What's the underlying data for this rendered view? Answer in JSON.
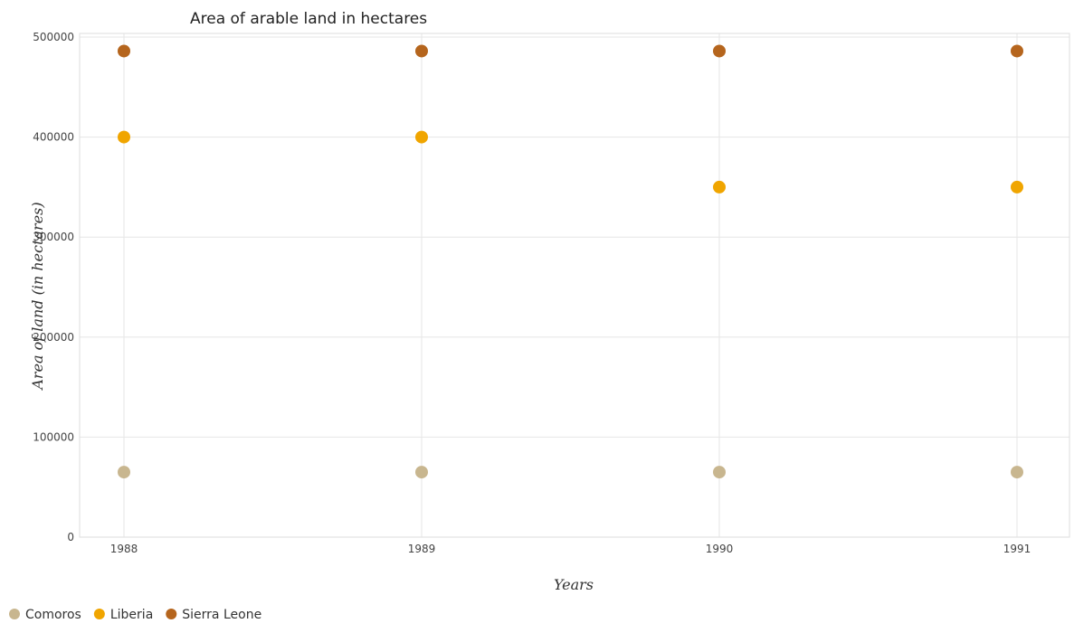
{
  "chart_data": {
    "type": "scatter",
    "title": "Area of arable land in hectares",
    "xlabel": "Years",
    "ylabel": "Area of land (in hectares)",
    "categories": [
      "1988",
      "1989",
      "1990",
      "1991"
    ],
    "ylim": [
      0,
      500000
    ],
    "yticks": [
      0,
      100000,
      200000,
      300000,
      400000,
      500000
    ],
    "ytick_labels": [
      "0",
      "100000",
      "200000",
      "300000",
      "400000",
      "500000"
    ],
    "grid": true,
    "legend_position": "bottom-left",
    "series": [
      {
        "name": "Comoros",
        "color": "#c8b68f",
        "values": [
          65000,
          65000,
          65000,
          65000
        ]
      },
      {
        "name": "Liberia",
        "color": "#f0a500",
        "values": [
          400000,
          400000,
          350000,
          350000
        ]
      },
      {
        "name": "Sierra Leone",
        "color": "#b5651d",
        "values": [
          486000,
          486000,
          486000,
          486000
        ]
      }
    ]
  }
}
